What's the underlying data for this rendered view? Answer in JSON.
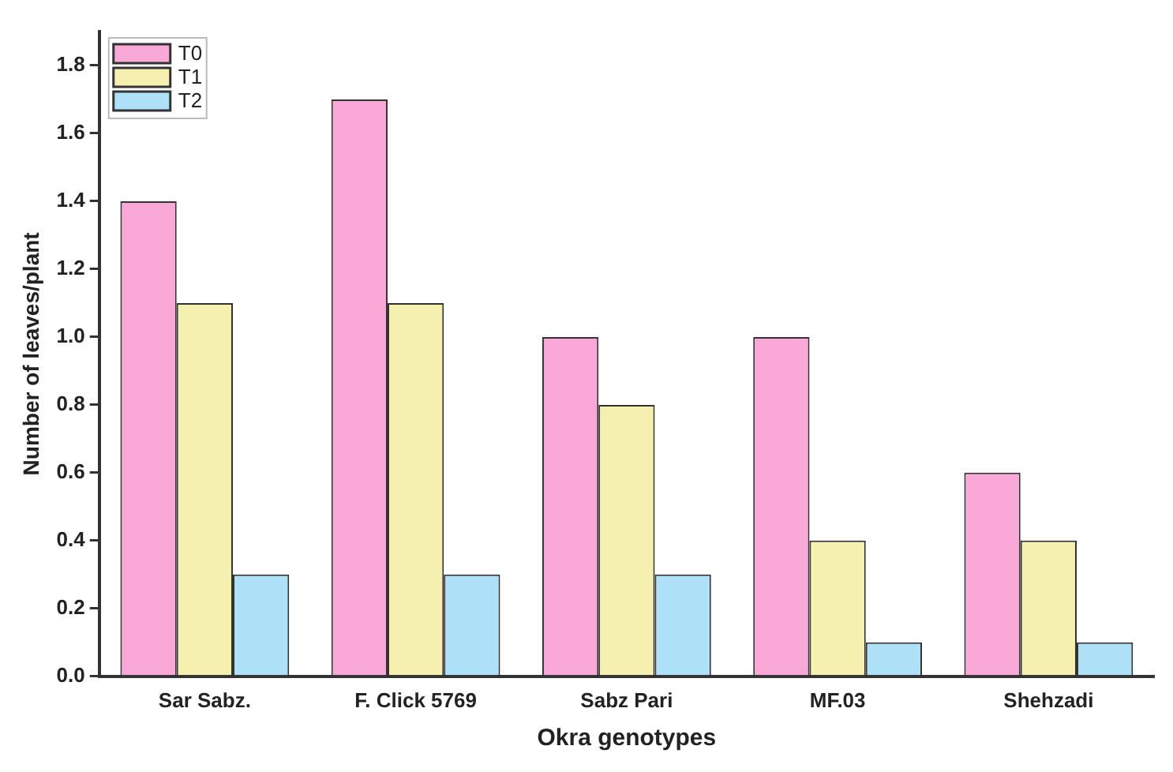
{
  "chart_data": {
    "type": "bar",
    "xlabel": "Okra genotypes",
    "ylabel": "Number of leaves/plant",
    "categories": [
      "Sar Sabz.",
      "F. Click 5769",
      "Sabz Pari",
      "MF.03",
      "Shehzadi"
    ],
    "series": [
      {
        "name": "T0",
        "color": "#f9a8d8",
        "values": [
          1.4,
          1.7,
          1.0,
          1.0,
          0.6
        ]
      },
      {
        "name": "T1",
        "color": "#f5f0b0",
        "values": [
          1.1,
          1.1,
          0.8,
          0.4,
          0.4
        ]
      },
      {
        "name": "T2",
        "color": "#aee0f7",
        "values": [
          0.3,
          0.3,
          0.3,
          0.1,
          0.1
        ]
      }
    ],
    "ylim": [
      0,
      1.9
    ],
    "yticks": [
      {
        "value": 0,
        "label": "0.0"
      },
      0.2,
      0.4,
      0.6,
      0.8,
      {
        "value": 1,
        "label": "1.0"
      },
      1.2,
      1.4,
      1.6,
      1.8
    ],
    "grid": false,
    "legend": "top left"
  }
}
